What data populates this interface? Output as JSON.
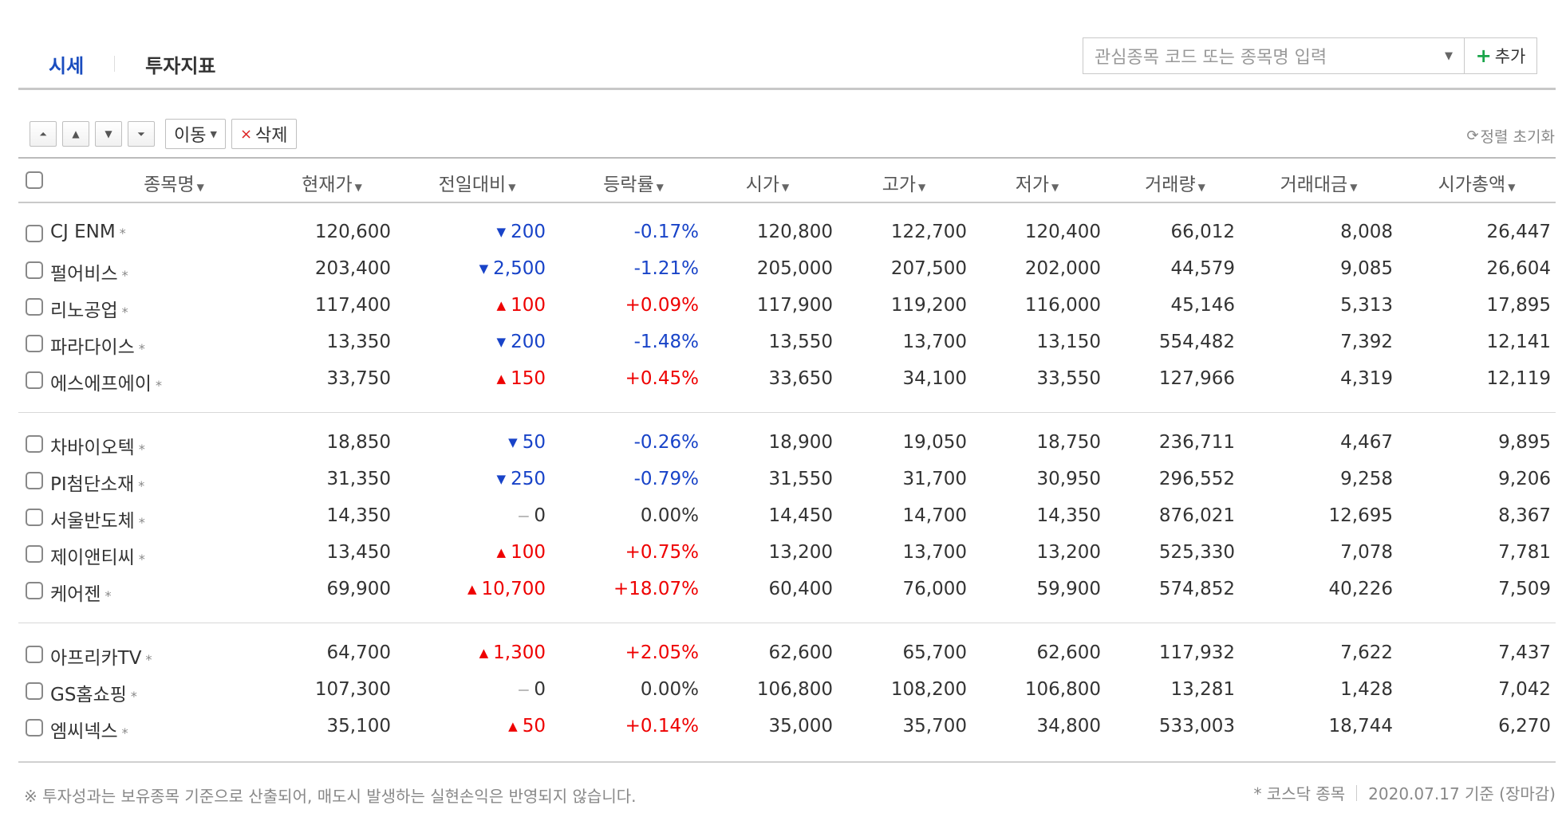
{
  "tabs": [
    {
      "label": "시세",
      "active": true
    },
    {
      "label": "투자지표",
      "active": false
    }
  ],
  "watch": {
    "placeholder": "관심종목 코드 또는 종목명 입력",
    "add_label": "추가"
  },
  "toolbar": {
    "move_label": "이동",
    "delete_label": "삭제",
    "reset_label": "정렬 초기화"
  },
  "columns": [
    "종목명",
    "현재가",
    "전일대비",
    "등락률",
    "시가",
    "고가",
    "저가",
    "거래량",
    "거래대금",
    "시가총액"
  ],
  "rows": [
    {
      "name": "CJ ENM",
      "price": "120,600",
      "dir": "down",
      "change": "200",
      "rate": "-0.17%",
      "open": "120,800",
      "high": "122,700",
      "low": "120,400",
      "volume": "66,012",
      "amount": "8,008",
      "cap": "26,447"
    },
    {
      "name": "펄어비스",
      "price": "203,400",
      "dir": "down",
      "change": "2,500",
      "rate": "-1.21%",
      "open": "205,000",
      "high": "207,500",
      "low": "202,000",
      "volume": "44,579",
      "amount": "9,085",
      "cap": "26,604"
    },
    {
      "name": "리노공업",
      "price": "117,400",
      "dir": "up",
      "change": "100",
      "rate": "+0.09%",
      "open": "117,900",
      "high": "119,200",
      "low": "116,000",
      "volume": "45,146",
      "amount": "5,313",
      "cap": "17,895"
    },
    {
      "name": "파라다이스",
      "price": "13,350",
      "dir": "down",
      "change": "200",
      "rate": "-1.48%",
      "open": "13,550",
      "high": "13,700",
      "low": "13,150",
      "volume": "554,482",
      "amount": "7,392",
      "cap": "12,141"
    },
    {
      "name": "에스에프에이",
      "price": "33,750",
      "dir": "up",
      "change": "150",
      "rate": "+0.45%",
      "open": "33,650",
      "high": "34,100",
      "low": "33,550",
      "volume": "127,966",
      "amount": "4,319",
      "cap": "12,119"
    },
    {
      "name": "차바이오텍",
      "price": "18,850",
      "dir": "down",
      "change": "50",
      "rate": "-0.26%",
      "open": "18,900",
      "high": "19,050",
      "low": "18,750",
      "volume": "236,711",
      "amount": "4,467",
      "cap": "9,895"
    },
    {
      "name": "PI첨단소재",
      "price": "31,350",
      "dir": "down",
      "change": "250",
      "rate": "-0.79%",
      "open": "31,550",
      "high": "31,700",
      "low": "30,950",
      "volume": "296,552",
      "amount": "9,258",
      "cap": "9,206"
    },
    {
      "name": "서울반도체",
      "price": "14,350",
      "dir": "flat",
      "change": "0",
      "rate": "0.00%",
      "open": "14,450",
      "high": "14,700",
      "low": "14,350",
      "volume": "876,021",
      "amount": "12,695",
      "cap": "8,367"
    },
    {
      "name": "제이앤티씨",
      "price": "13,450",
      "dir": "up",
      "change": "100",
      "rate": "+0.75%",
      "open": "13,200",
      "high": "13,700",
      "low": "13,200",
      "volume": "525,330",
      "amount": "7,078",
      "cap": "7,781"
    },
    {
      "name": "케어젠",
      "price": "69,900",
      "dir": "up",
      "change": "10,700",
      "rate": "+18.07%",
      "open": "60,400",
      "high": "76,000",
      "low": "59,900",
      "volume": "574,852",
      "amount": "40,226",
      "cap": "7,509"
    },
    {
      "name": "아프리카TV",
      "price": "64,700",
      "dir": "up",
      "change": "1,300",
      "rate": "+2.05%",
      "open": "62,600",
      "high": "65,700",
      "low": "62,600",
      "volume": "117,932",
      "amount": "7,622",
      "cap": "7,437"
    },
    {
      "name": "GS홈쇼핑",
      "price": "107,300",
      "dir": "flat",
      "change": "0",
      "rate": "0.00%",
      "open": "106,800",
      "high": "108,200",
      "low": "106,800",
      "volume": "13,281",
      "amount": "1,428",
      "cap": "7,042"
    },
    {
      "name": "엠씨넥스",
      "price": "35,100",
      "dir": "up",
      "change": "50",
      "rate": "+0.14%",
      "open": "35,000",
      "high": "35,700",
      "low": "34,800",
      "volume": "533,003",
      "amount": "18,744",
      "cap": "6,270"
    }
  ],
  "kosdaq_mark": "*",
  "footer": {
    "note": "※ 투자성과는 보유종목 기준으로 산출되어, 매도시 발생하는 실현손익은 반영되지 않습니다.",
    "kosdaq_label": "* 코스닥 종목",
    "date_label": "2020.07.17 기준 (장마감)"
  },
  "colors": {
    "up": "#e00000",
    "down": "#1843c8",
    "tab_active": "#1a4dbf",
    "add_plus": "#1aa54a"
  }
}
